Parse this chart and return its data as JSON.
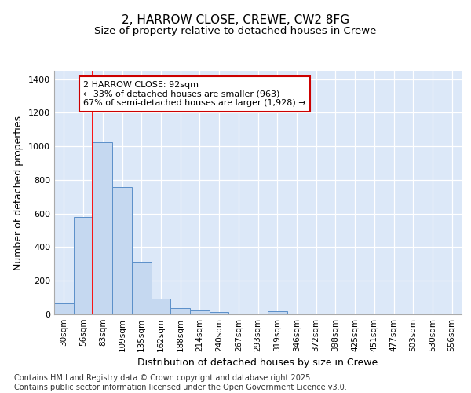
{
  "title": "2, HARROW CLOSE, CREWE, CW2 8FG",
  "subtitle": "Size of property relative to detached houses in Crewe",
  "xlabel": "Distribution of detached houses by size in Crewe",
  "ylabel": "Number of detached properties",
  "categories": [
    "30sqm",
    "56sqm",
    "83sqm",
    "109sqm",
    "135sqm",
    "162sqm",
    "188sqm",
    "214sqm",
    "240sqm",
    "267sqm",
    "293sqm",
    "319sqm",
    "346sqm",
    "372sqm",
    "398sqm",
    "425sqm",
    "451sqm",
    "477sqm",
    "503sqm",
    "530sqm",
    "556sqm"
  ],
  "values": [
    65,
    580,
    1025,
    760,
    315,
    92,
    38,
    22,
    12,
    0,
    0,
    18,
    0,
    0,
    0,
    0,
    0,
    0,
    0,
    0,
    0
  ],
  "bar_color": "#c5d8f0",
  "bar_edge_color": "#5b8fc9",
  "background_color": "#dce8f8",
  "grid_color": "#ffffff",
  "red_line_x": 1.5,
  "annotation_text": "2 HARROW CLOSE: 92sqm\n← 33% of detached houses are smaller (963)\n67% of semi-detached houses are larger (1,928) →",
  "annotation_box_color": "#ffffff",
  "annotation_box_edge": "#cc0000",
  "ylim": [
    0,
    1450
  ],
  "yticks": [
    0,
    200,
    400,
    600,
    800,
    1000,
    1200,
    1400
  ],
  "footer": "Contains HM Land Registry data © Crown copyright and database right 2025.\nContains public sector information licensed under the Open Government Licence v3.0.",
  "title_fontsize": 11,
  "subtitle_fontsize": 9.5,
  "tick_fontsize": 7.5,
  "label_fontsize": 9,
  "footer_fontsize": 7
}
